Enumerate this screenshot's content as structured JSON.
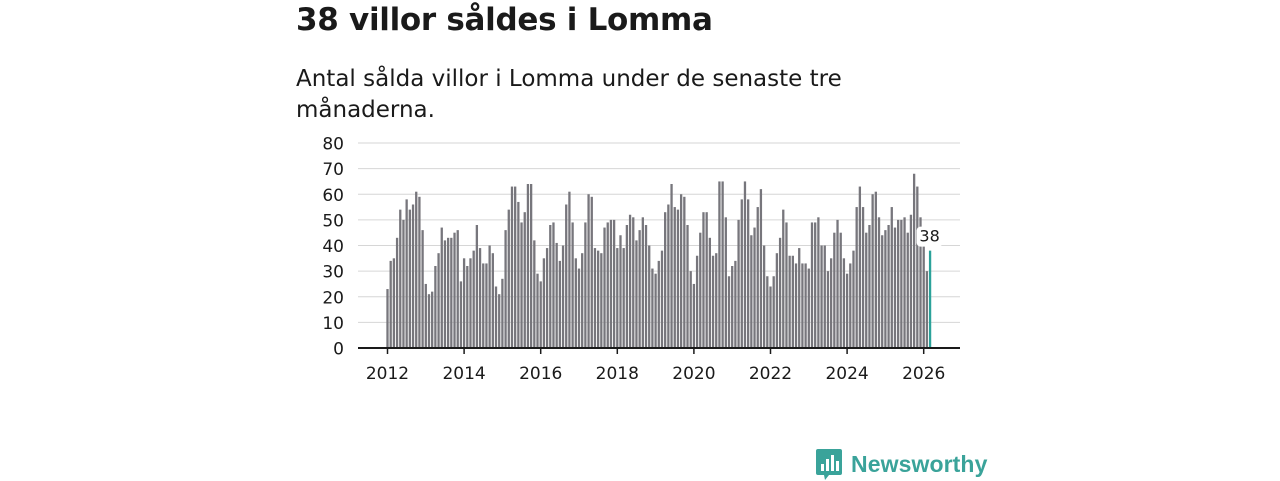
{
  "header": {
    "title": "38 villor såldes i Lomma",
    "subtitle": "Antal sålda villor i Lomma under de senaste tre månaderna."
  },
  "brand": {
    "name": "Newsworthy",
    "color": "#3aa39a"
  },
  "chart_data": {
    "type": "bar",
    "start": "2012-01",
    "x_ticks": [
      "2012",
      "2014",
      "2016",
      "2018",
      "2020",
      "2022",
      "2024",
      "2026"
    ],
    "y_ticks": [
      0,
      10,
      20,
      30,
      40,
      50,
      60,
      70,
      80
    ],
    "ylim": [
      0,
      80
    ],
    "xlabel": "",
    "ylabel": "",
    "bar_color": "#77767c",
    "highlight_color": "#2ba29a",
    "highlight_label": "38",
    "series": [
      {
        "name": "Antal sålda villor",
        "values": [
          23,
          34,
          35,
          43,
          54,
          50,
          58,
          54,
          56,
          61,
          59,
          46,
          25,
          21,
          22,
          32,
          37,
          47,
          42,
          43,
          43,
          45,
          46,
          26,
          35,
          32,
          35,
          38,
          48,
          39,
          33,
          33,
          40,
          37,
          24,
          21,
          27,
          46,
          54,
          63,
          63,
          57,
          49,
          53,
          64,
          64,
          42,
          29,
          26,
          35,
          39,
          48,
          49,
          41,
          34,
          40,
          56,
          61,
          49,
          35,
          31,
          37,
          49,
          60,
          59,
          39,
          38,
          37,
          47,
          49,
          50,
          50,
          39,
          44,
          39,
          48,
          52,
          51,
          42,
          46,
          51,
          48,
          40,
          31,
          29,
          34,
          38,
          53,
          56,
          64,
          55,
          54,
          60,
          59,
          48,
          30,
          25,
          36,
          45,
          53,
          53,
          43,
          36,
          37,
          65,
          65,
          51,
          28,
          32,
          34,
          50,
          58,
          65,
          58,
          44,
          47,
          55,
          62,
          40,
          28,
          24,
          28,
          37,
          43,
          54,
          49,
          36,
          36,
          33,
          39,
          33,
          33,
          31,
          49,
          49,
          51,
          40,
          40,
          30,
          35,
          45,
          50,
          45,
          35,
          29,
          33,
          38,
          55,
          63,
          55,
          45,
          48,
          60,
          61,
          51,
          44,
          46,
          48,
          55,
          47,
          50,
          50,
          51,
          45,
          52,
          68,
          63,
          51,
          41,
          30,
          38
        ]
      }
    ]
  }
}
